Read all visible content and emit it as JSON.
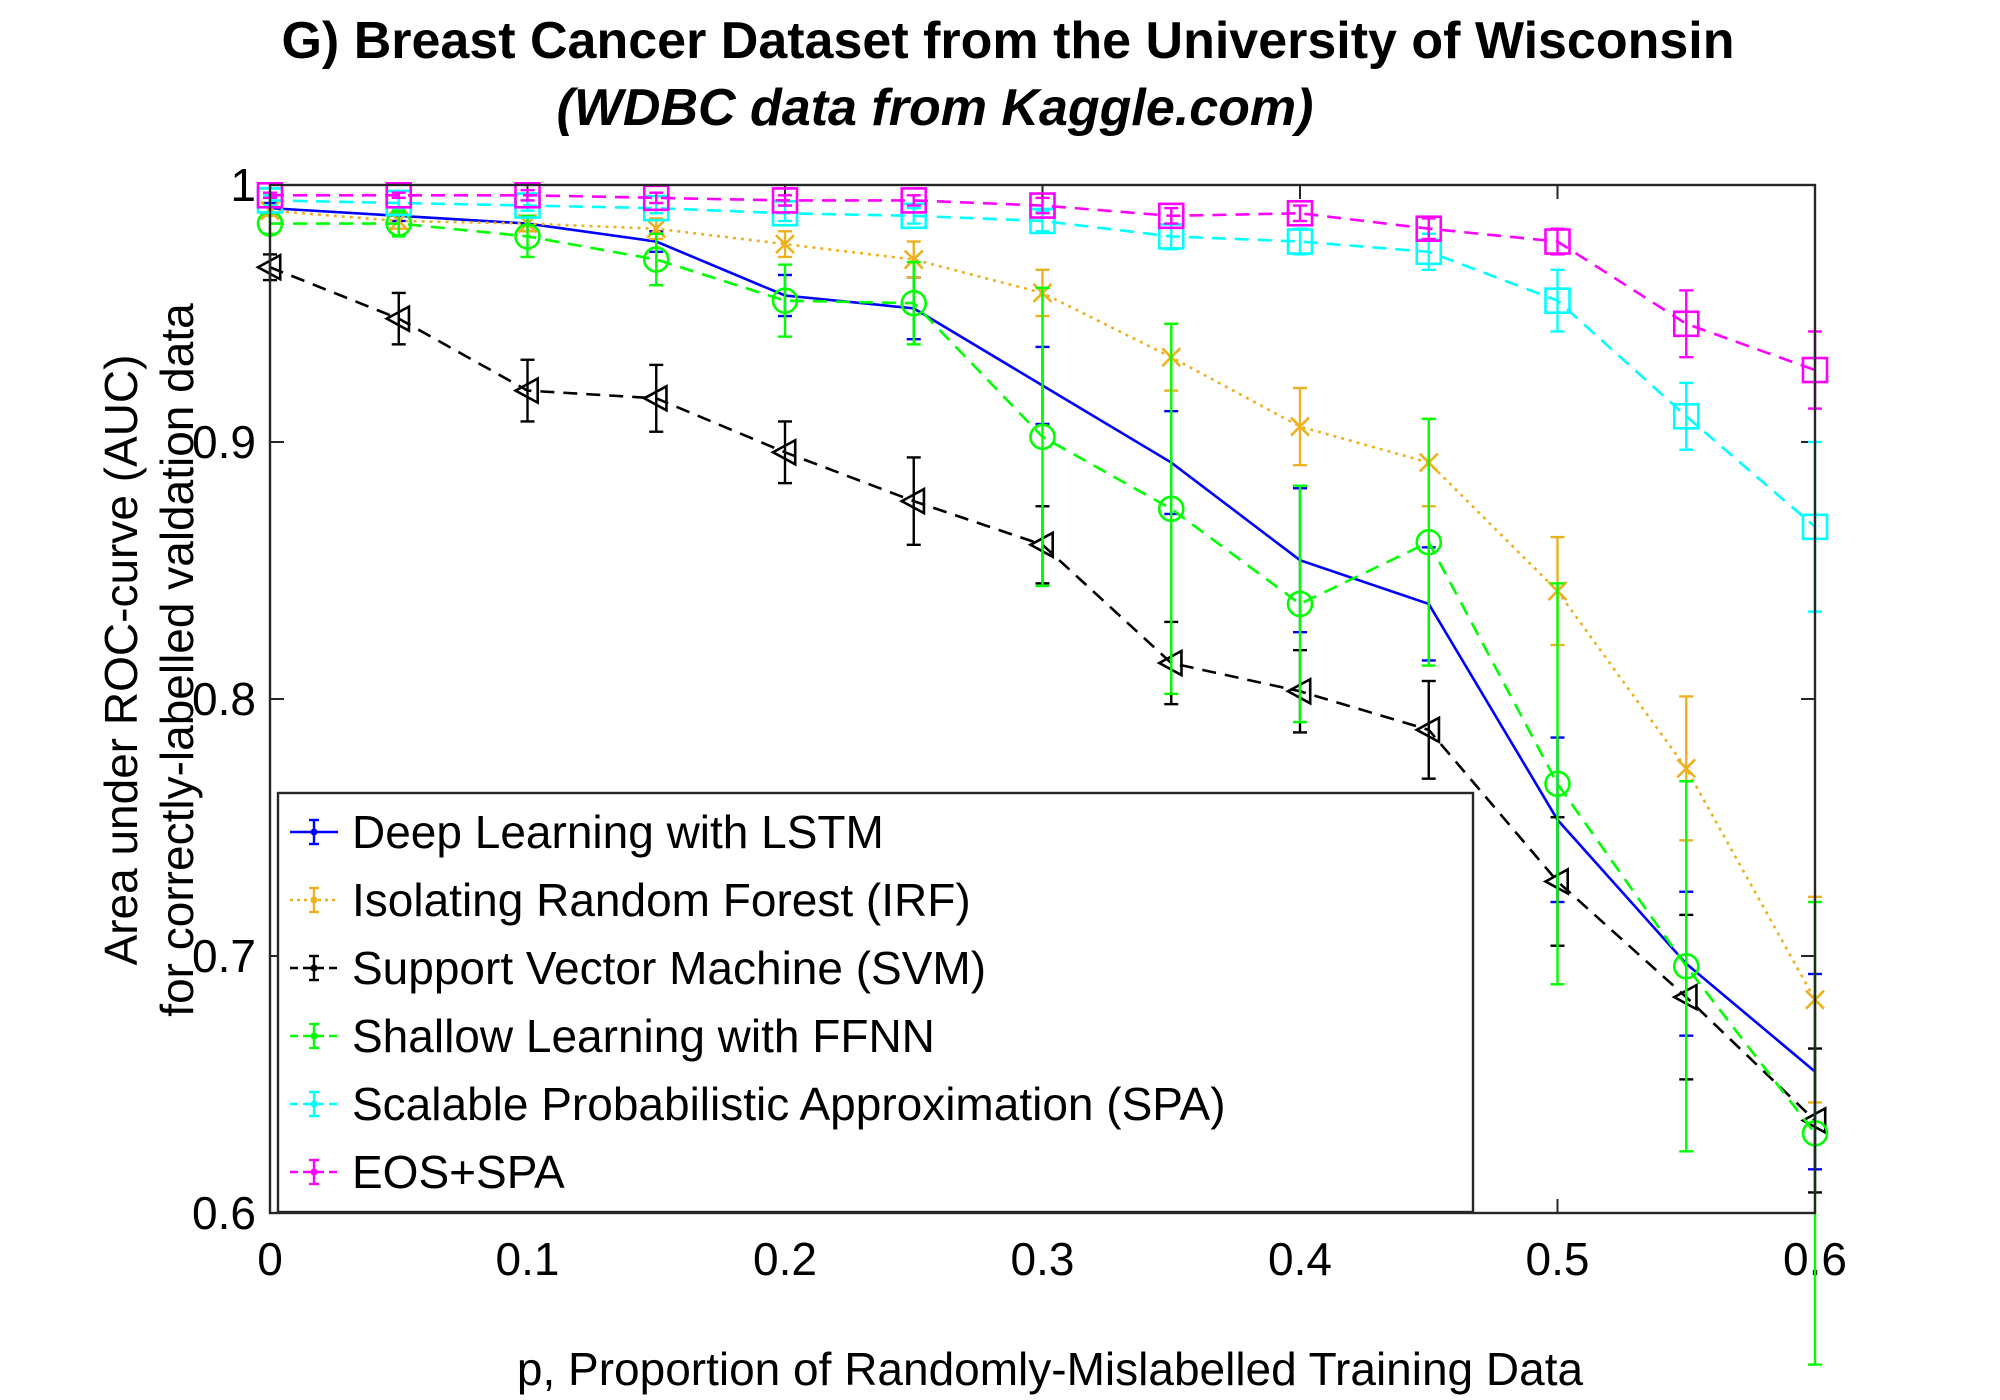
{
  "chart_data": {
    "type": "line",
    "title_line1": "G) Breast Cancer Dataset from the University of Wisconsin",
    "title_line2": "(WDBC data from Kaggle.com)",
    "xlabel": "p, Proportion of Randomly-Mislabelled Training Data",
    "ylabel_line1": "Area under ROC-curve (AUC)",
    "ylabel_line2": "for correctly-labelled valdation data",
    "xlim": [
      0,
      0.6
    ],
    "ylim": [
      0.6,
      1.0
    ],
    "x_ticks": [
      0,
      0.1,
      0.2,
      0.3,
      0.4,
      0.5,
      0.6
    ],
    "x_tick_labels": [
      "0",
      "0.1",
      "0.2",
      "0.3",
      "0.4",
      "0.5",
      "0.6"
    ],
    "y_ticks": [
      0.6,
      0.7,
      0.8,
      0.9,
      1.0
    ],
    "y_tick_labels": [
      "0.6",
      "0.7",
      "0.8",
      "0.9",
      "1"
    ],
    "legend_position": "bottom-left",
    "x": [
      0,
      0.05,
      0.1,
      0.15,
      0.2,
      0.25,
      0.3,
      0.35,
      0.4,
      0.45,
      0.5,
      0.55,
      0.6
    ],
    "series": [
      {
        "name": "Deep Learning with LSTM",
        "color": "#0000ff",
        "dash": "solid",
        "marker": "none",
        "values": [
          0.991,
          0.988,
          0.985,
          0.978,
          0.957,
          0.952,
          0.922,
          0.892,
          0.854,
          0.837,
          0.753,
          0.697,
          0.655
        ],
        "errors": [
          0.002,
          0.002,
          0.003,
          0.004,
          0.008,
          0.012,
          0.015,
          0.02,
          0.028,
          0.022,
          0.032,
          0.028,
          0.038
        ]
      },
      {
        "name": "Isolating Random Forest (IRF)",
        "color": "#edb120",
        "dash": "dotted",
        "marker": "x",
        "values": [
          0.99,
          0.986,
          0.985,
          0.983,
          0.977,
          0.971,
          0.958,
          0.933,
          0.906,
          0.892,
          0.842,
          0.773,
          0.683
        ],
        "errors": [
          0.002,
          0.003,
          0.003,
          0.004,
          0.005,
          0.007,
          0.009,
          0.013,
          0.015,
          0.017,
          0.021,
          0.028,
          0.04
        ]
      },
      {
        "name": "Support Vector Machine (SVM)",
        "color": "#000000",
        "dash": "dashed",
        "marker": "triangle-left",
        "values": [
          0.968,
          0.948,
          0.92,
          0.917,
          0.896,
          0.877,
          0.86,
          0.814,
          0.803,
          0.788,
          0.729,
          0.684,
          0.636
        ],
        "errors": [
          0.005,
          0.01,
          0.012,
          0.013,
          0.012,
          0.017,
          0.015,
          0.016,
          0.016,
          0.019,
          0.025,
          0.032,
          0.028
        ]
      },
      {
        "name": "Shallow Learning with FFNN",
        "color": "#00ff00",
        "dash": "dashed",
        "marker": "circle",
        "values": [
          0.985,
          0.985,
          0.98,
          0.971,
          0.955,
          0.954,
          0.902,
          0.874,
          0.837,
          0.861,
          0.767,
          0.696,
          0.631
        ],
        "errors": [
          0.004,
          0.005,
          0.008,
          0.01,
          0.014,
          0.016,
          0.058,
          0.072,
          0.046,
          0.048,
          0.078,
          0.072,
          0.09
        ]
      },
      {
        "name": "Scalable Probabilistic Approximation (SPA)",
        "color": "#00ffff",
        "dash": "dashed",
        "marker": "square",
        "values": [
          0.994,
          0.993,
          0.992,
          0.991,
          0.989,
          0.988,
          0.986,
          0.98,
          0.978,
          0.974,
          0.955,
          0.91,
          0.867
        ],
        "errors": [
          0.002,
          0.002,
          0.002,
          0.002,
          0.003,
          0.003,
          0.004,
          0.005,
          0.005,
          0.007,
          0.012,
          0.013,
          0.033
        ]
      },
      {
        "name": "EOS+SPA",
        "color": "#ff00ff",
        "dash": "dashed",
        "marker": "square",
        "values": [
          0.996,
          0.996,
          0.996,
          0.995,
          0.994,
          0.994,
          0.992,
          0.988,
          0.989,
          0.983,
          0.978,
          0.946,
          0.928
        ],
        "errors": [
          0.001,
          0.001,
          0.002,
          0.002,
          0.002,
          0.002,
          0.003,
          0.003,
          0.003,
          0.004,
          0.005,
          0.013,
          0.015
        ]
      }
    ]
  }
}
